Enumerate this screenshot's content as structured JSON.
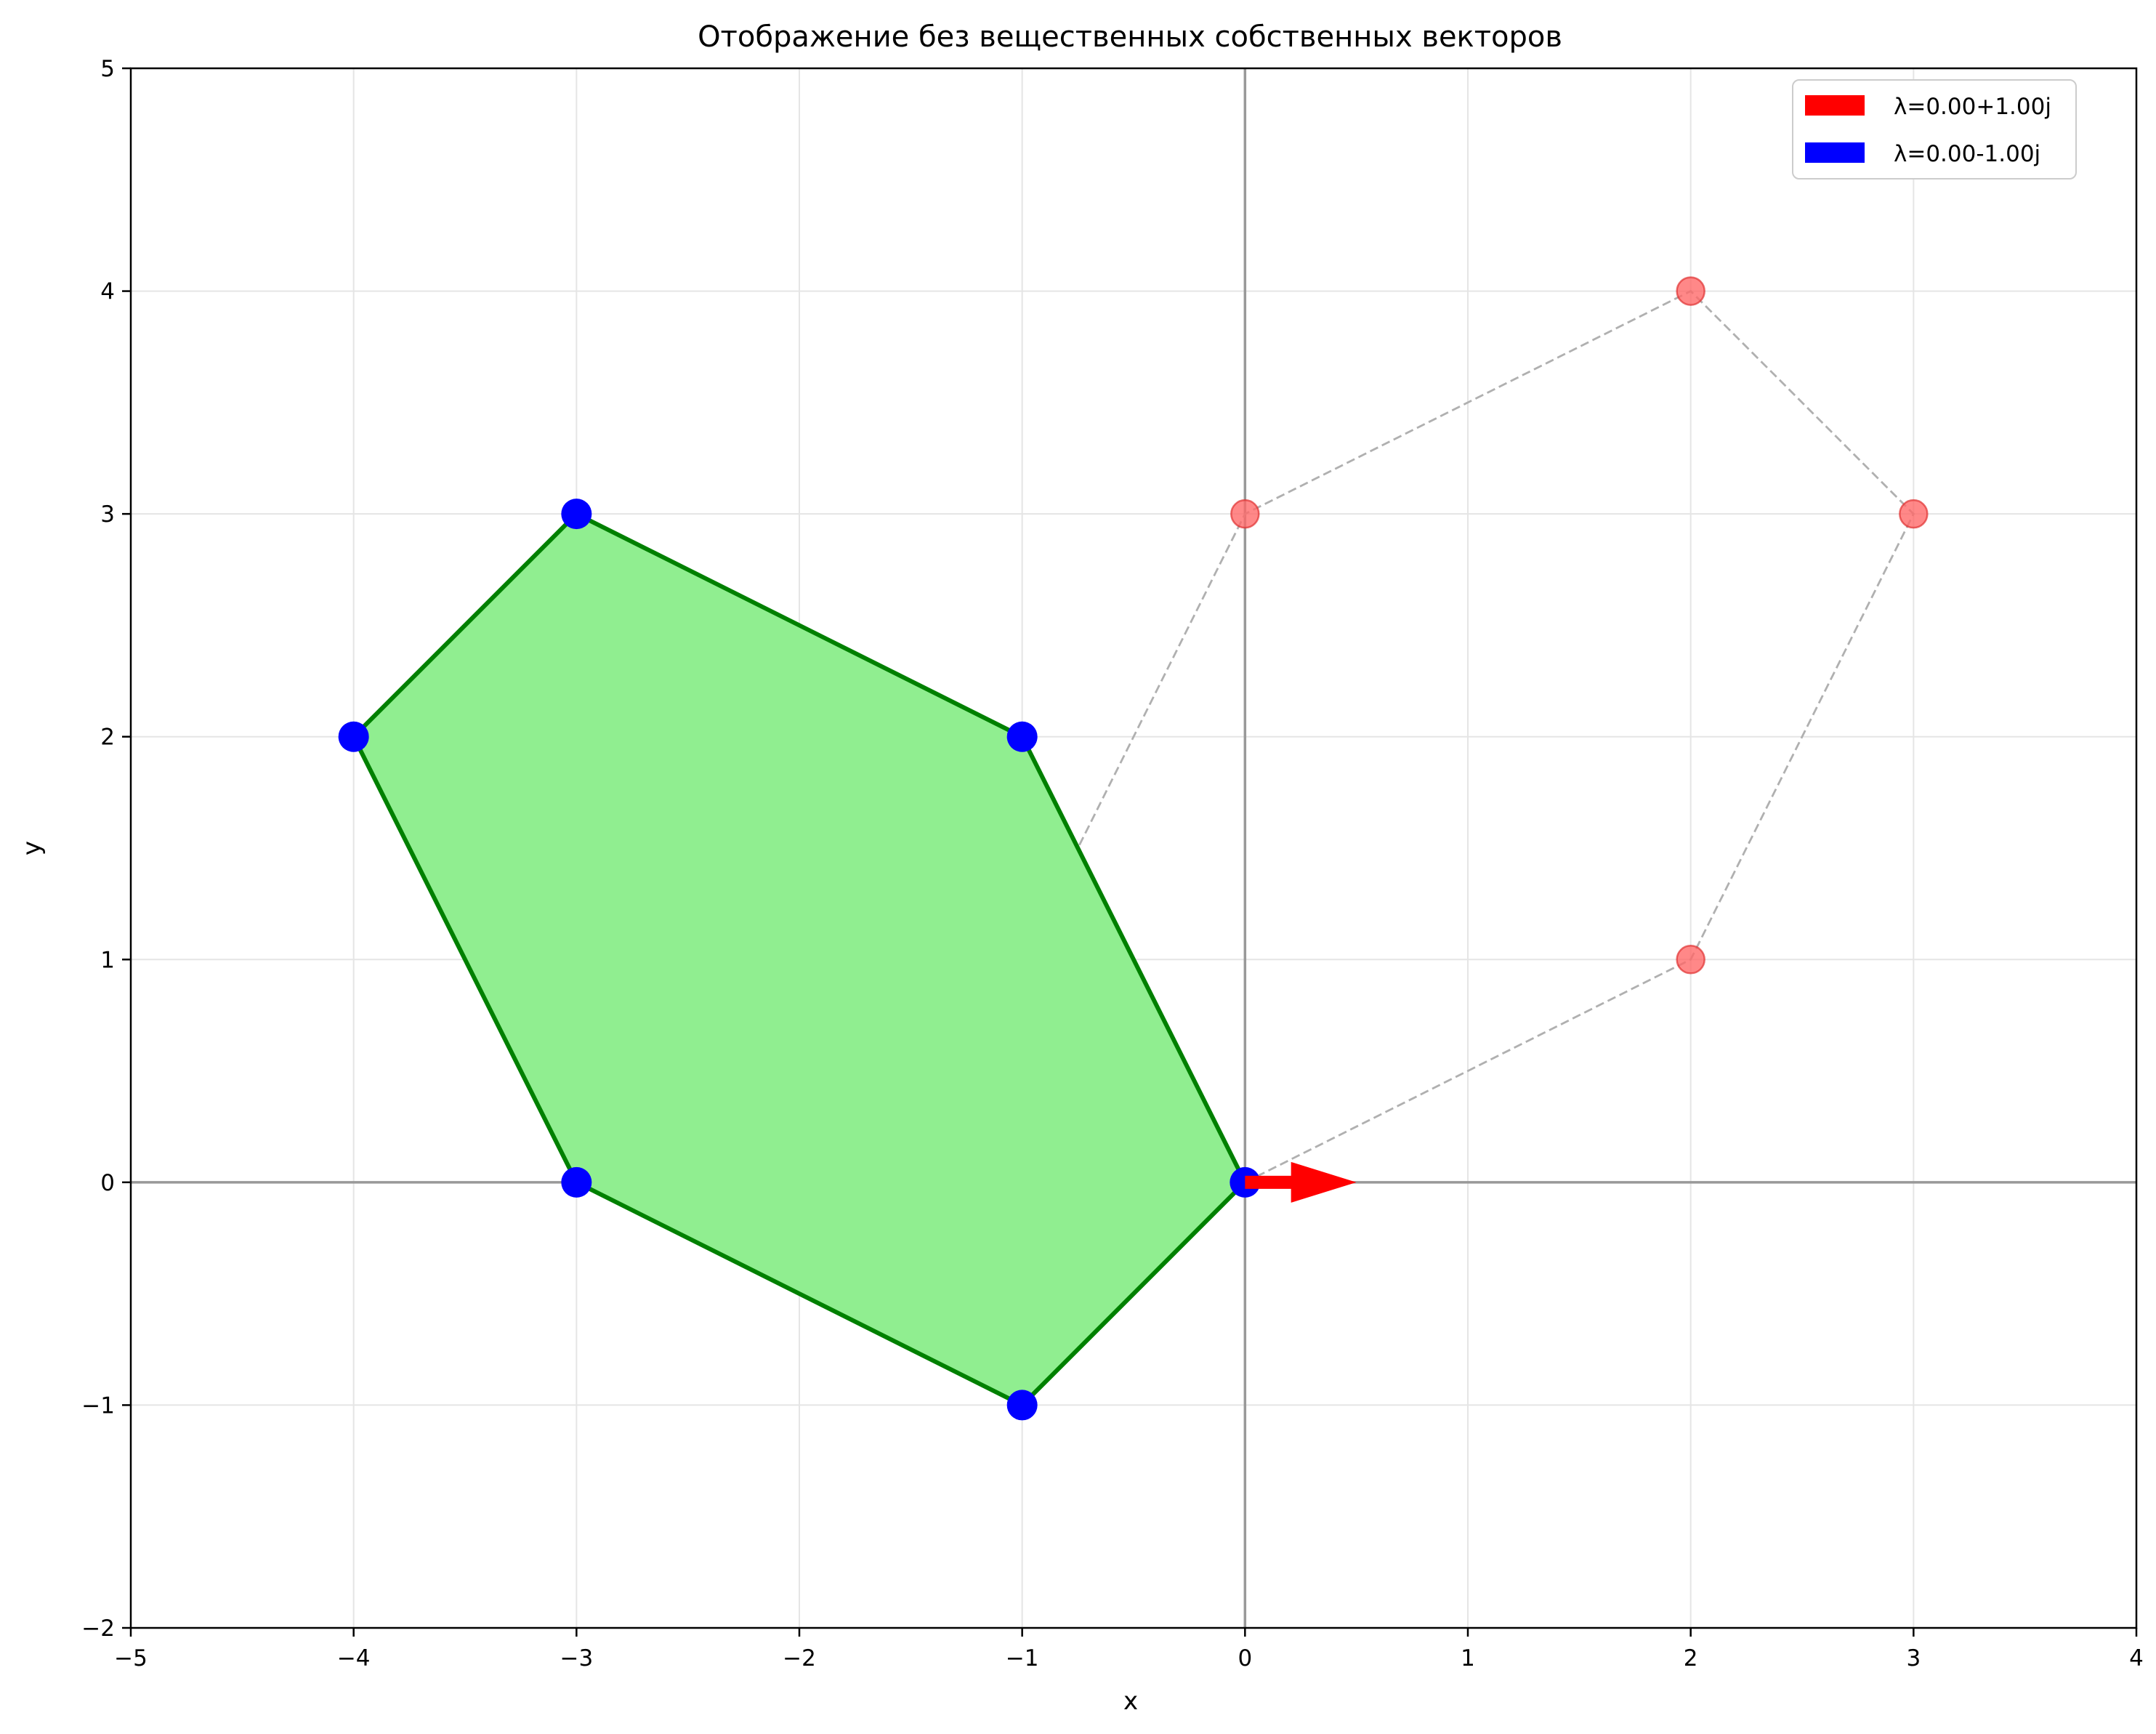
{
  "chart_data": {
    "type": "scatter",
    "title": "Отображение без вещественных собственных векторов",
    "xlabel": "x",
    "ylabel": "y",
    "xlim": [
      -5,
      4
    ],
    "ylim": [
      -2,
      5
    ],
    "x_ticks": [
      -5,
      -4,
      -3,
      -2,
      -1,
      0,
      1,
      2,
      3,
      4
    ],
    "y_ticks": [
      -2,
      -1,
      0,
      1,
      2,
      3,
      4,
      5
    ],
    "x_tick_labels": [
      "−5",
      "−4",
      "−3",
      "−2",
      "−1",
      "0",
      "1",
      "2",
      "3",
      "4"
    ],
    "y_tick_labels": [
      "−2",
      "−1",
      "0",
      "1",
      "2",
      "3",
      "4",
      "5"
    ],
    "grid": true,
    "legend_position": "top-right",
    "legend": [
      {
        "label": "λ=0.00+1.00j",
        "color": "#ff0000"
      },
      {
        "label": "λ=0.00-1.00j",
        "color": "#0000ff"
      }
    ],
    "original_polygon": {
      "points": [
        [
          0,
          0
        ],
        [
          2,
          1
        ],
        [
          3,
          3
        ],
        [
          2,
          4
        ],
        [
          0,
          3
        ],
        [
          -1,
          1
        ]
      ],
      "line_color": "#b0b0b0",
      "line_style": "dashed",
      "marker_color": "#ff6666"
    },
    "transformed_polygon": {
      "points": [
        [
          0,
          0
        ],
        [
          -1,
          -1
        ],
        [
          -3,
          0
        ],
        [
          -4,
          2
        ],
        [
          -3,
          3
        ],
        [
          -1,
          2
        ]
      ],
      "fill_color": "#90ee90",
      "line_color": "#008000",
      "marker_color": "#0000ff"
    },
    "vectors": [
      {
        "from": [
          0,
          0
        ],
        "to": [
          0.5,
          0
        ],
        "color": "#ff0000"
      }
    ],
    "colors": {
      "axis_lines": "#999999",
      "grid": "#e5e5e5",
      "frame": "#000000"
    }
  }
}
